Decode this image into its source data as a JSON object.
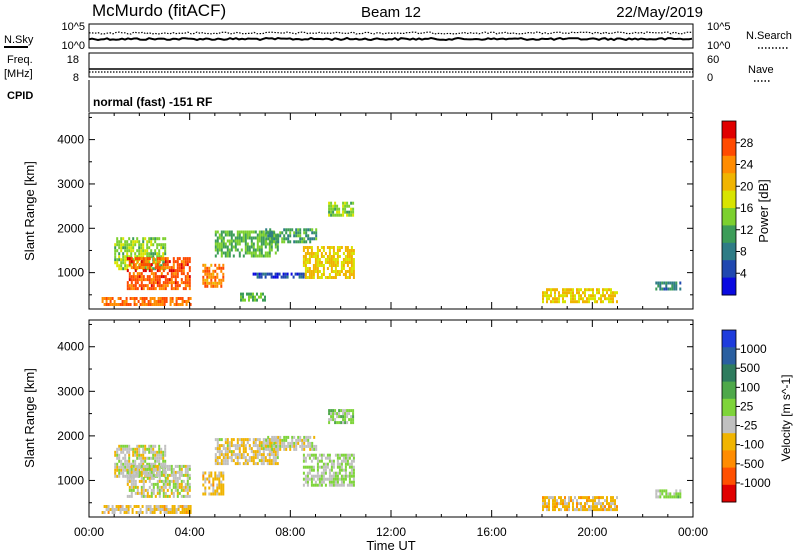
{
  "header": {
    "title": "McMurdo (fitACF)",
    "beam": "Beam 12",
    "date": "22/May/2019"
  },
  "status_panels": {
    "nsky_label": "N.Sky",
    "nsky_ticks": [
      "10^5",
      "10^0"
    ],
    "nsearch_label": "N.Search",
    "nsearch_ticks": [
      "10^5",
      "10^0"
    ],
    "freq_label_1": "Freq.",
    "freq_label_2": "[MHz]",
    "freq_ticks": [
      "18",
      "8"
    ],
    "nave_label": "Nave",
    "nave_ticks": [
      "60",
      "0"
    ],
    "cpid_label": "CPID",
    "cpid_text": "normal (fast) -151 RF"
  },
  "chart_data": [
    {
      "type": "heatmap",
      "title": "",
      "xlabel": "Time UT",
      "ylabel": "Slant Range [km]",
      "x_ticks": [
        "00:00",
        "04:00",
        "08:00",
        "12:00",
        "16:00",
        "20:00",
        "00:00"
      ],
      "x_range_hours": [
        0,
        24
      ],
      "y_ticks": [
        "4000",
        "3000",
        "2000",
        "1000"
      ],
      "ylim": [
        180,
        4600
      ],
      "colorbar": {
        "label": "Power [dB]",
        "ticks": [
          "28",
          "24",
          "20",
          "16",
          "12",
          "8",
          "4"
        ],
        "colors": [
          "#e00000",
          "#ff4a00",
          "#ff8c00",
          "#f0b400",
          "#d8e400",
          "#7cd02e",
          "#3c9c58",
          "#2f7c86",
          "#2048b0",
          "#0a0ae0"
        ]
      },
      "echo_regions": [
        {
          "t": [
            1.0,
            3.0
          ],
          "range": [
            1100,
            1800
          ],
          "value": 16
        },
        {
          "t": [
            1.5,
            4.0
          ],
          "range": [
            650,
            1350
          ],
          "value": 27
        },
        {
          "t": [
            4.5,
            5.3
          ],
          "range": [
            700,
            1200
          ],
          "value": 25
        },
        {
          "t": [
            5.0,
            7.5
          ],
          "range": [
            1400,
            1950
          ],
          "value": 14
        },
        {
          "t": [
            7.0,
            9.0
          ],
          "range": [
            1700,
            2000
          ],
          "value": 12
        },
        {
          "t": [
            8.5,
            10.5
          ],
          "range": [
            900,
            1600
          ],
          "value": 20
        },
        {
          "t": [
            9.5,
            10.5
          ],
          "range": [
            2300,
            2600
          ],
          "value": 16
        },
        {
          "t": [
            6.5,
            8.5
          ],
          "range": [
            900,
            1000
          ],
          "value": 6
        },
        {
          "t": [
            0.5,
            4.0
          ],
          "range": [
            250,
            450
          ],
          "value": 26
        },
        {
          "t": [
            6.0,
            7.0
          ],
          "range": [
            350,
            550
          ],
          "value": 14
        },
        {
          "t": [
            18.0,
            21.0
          ],
          "range": [
            350,
            650
          ],
          "value": 20
        },
        {
          "t": [
            22.5,
            23.5
          ],
          "range": [
            600,
            800
          ],
          "value": 10
        }
      ]
    },
    {
      "type": "heatmap",
      "title": "",
      "xlabel": "Time UT",
      "ylabel": "Slant Range [km]",
      "x_ticks": [
        "00:00",
        "04:00",
        "08:00",
        "12:00",
        "16:00",
        "20:00",
        "00:00"
      ],
      "x_range_hours": [
        0,
        24
      ],
      "y_ticks": [
        "4000",
        "3000",
        "2000",
        "1000"
      ],
      "ylim": [
        180,
        4600
      ],
      "colorbar": {
        "label": "Velocity [m s^-1]",
        "ticks": [
          "1000",
          "500",
          "100",
          "25",
          "-25",
          "-100",
          "-500",
          "-1000"
        ],
        "colors": [
          "#1e3cdc",
          "#2a5fa0",
          "#2e7c5e",
          "#4ea84a",
          "#7ed43a",
          "#c0c0c0",
          "#f0b400",
          "#ff8c00",
          "#ff5000",
          "#e00000"
        ]
      },
      "echo_regions": [
        {
          "t": [
            1.0,
            3.0
          ],
          "range": [
            1100,
            1800
          ],
          "value": -100
        },
        {
          "t": [
            1.5,
            4.0
          ],
          "range": [
            650,
            1350
          ],
          "value": -100
        },
        {
          "t": [
            4.5,
            5.3
          ],
          "range": [
            700,
            1200
          ],
          "value": -300
        },
        {
          "t": [
            5.0,
            7.5
          ],
          "range": [
            1400,
            1950
          ],
          "value": -200
        },
        {
          "t": [
            7.0,
            9.0
          ],
          "range": [
            1700,
            2000
          ],
          "value": -100
        },
        {
          "t": [
            8.5,
            10.5
          ],
          "range": [
            900,
            1600
          ],
          "value": 0
        },
        {
          "t": [
            9.5,
            10.5
          ],
          "range": [
            2300,
            2600
          ],
          "value": 100
        },
        {
          "t": [
            0.5,
            4.0
          ],
          "range": [
            250,
            450
          ],
          "value": -300
        },
        {
          "t": [
            18.0,
            21.0
          ],
          "range": [
            350,
            650
          ],
          "value": -300
        },
        {
          "t": [
            22.5,
            23.5
          ],
          "range": [
            600,
            800
          ],
          "value": 50
        }
      ]
    }
  ]
}
